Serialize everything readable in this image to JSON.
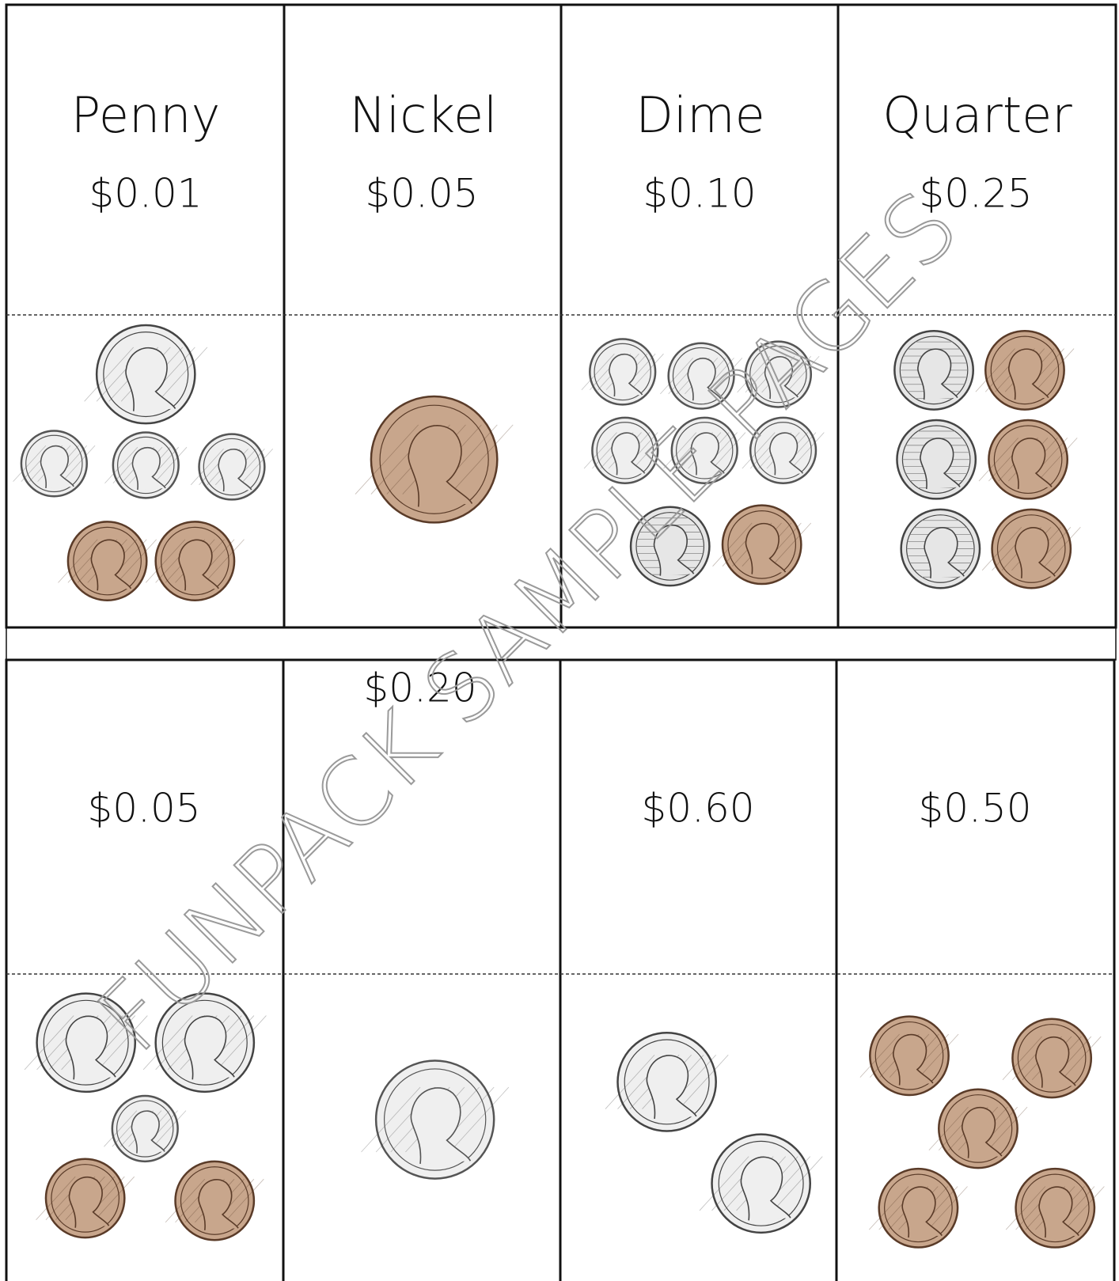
{
  "top_row": [
    {
      "name": "Penny",
      "value": "$0.01"
    },
    {
      "name": "Nickel",
      "value": "$0.05"
    },
    {
      "name": "Dime",
      "value": "$0.10"
    },
    {
      "name": "Quarter",
      "value": "$0.25"
    }
  ],
  "bottom_row": [
    {
      "value": "$0.05"
    },
    {
      "value": "$0.20"
    },
    {
      "value": "$0.60"
    },
    {
      "value": "$0.50"
    }
  ],
  "watermark": "FUNPACK SAMPLE PAGES"
}
